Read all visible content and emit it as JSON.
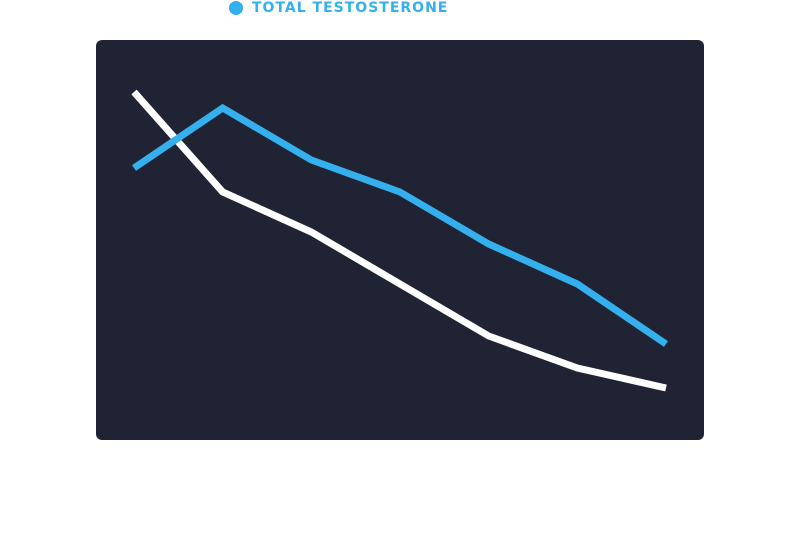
{
  "chart_data": {
    "type": "line",
    "categories": [
      null,
      null,
      null,
      null,
      null,
      null,
      null
    ],
    "series": [
      {
        "name": "TOTAL TESTOSTERONE",
        "color": "#35b0ee",
        "values": [
          68,
          83,
          70,
          62,
          49,
          39,
          24
        ]
      },
      {
        "color": "#ffffff",
        "values": [
          87,
          62,
          52,
          39,
          26,
          18,
          13
        ]
      }
    ],
    "ylim": [
      0,
      100
    ],
    "grid": false,
    "background": "#1f2333"
  }
}
